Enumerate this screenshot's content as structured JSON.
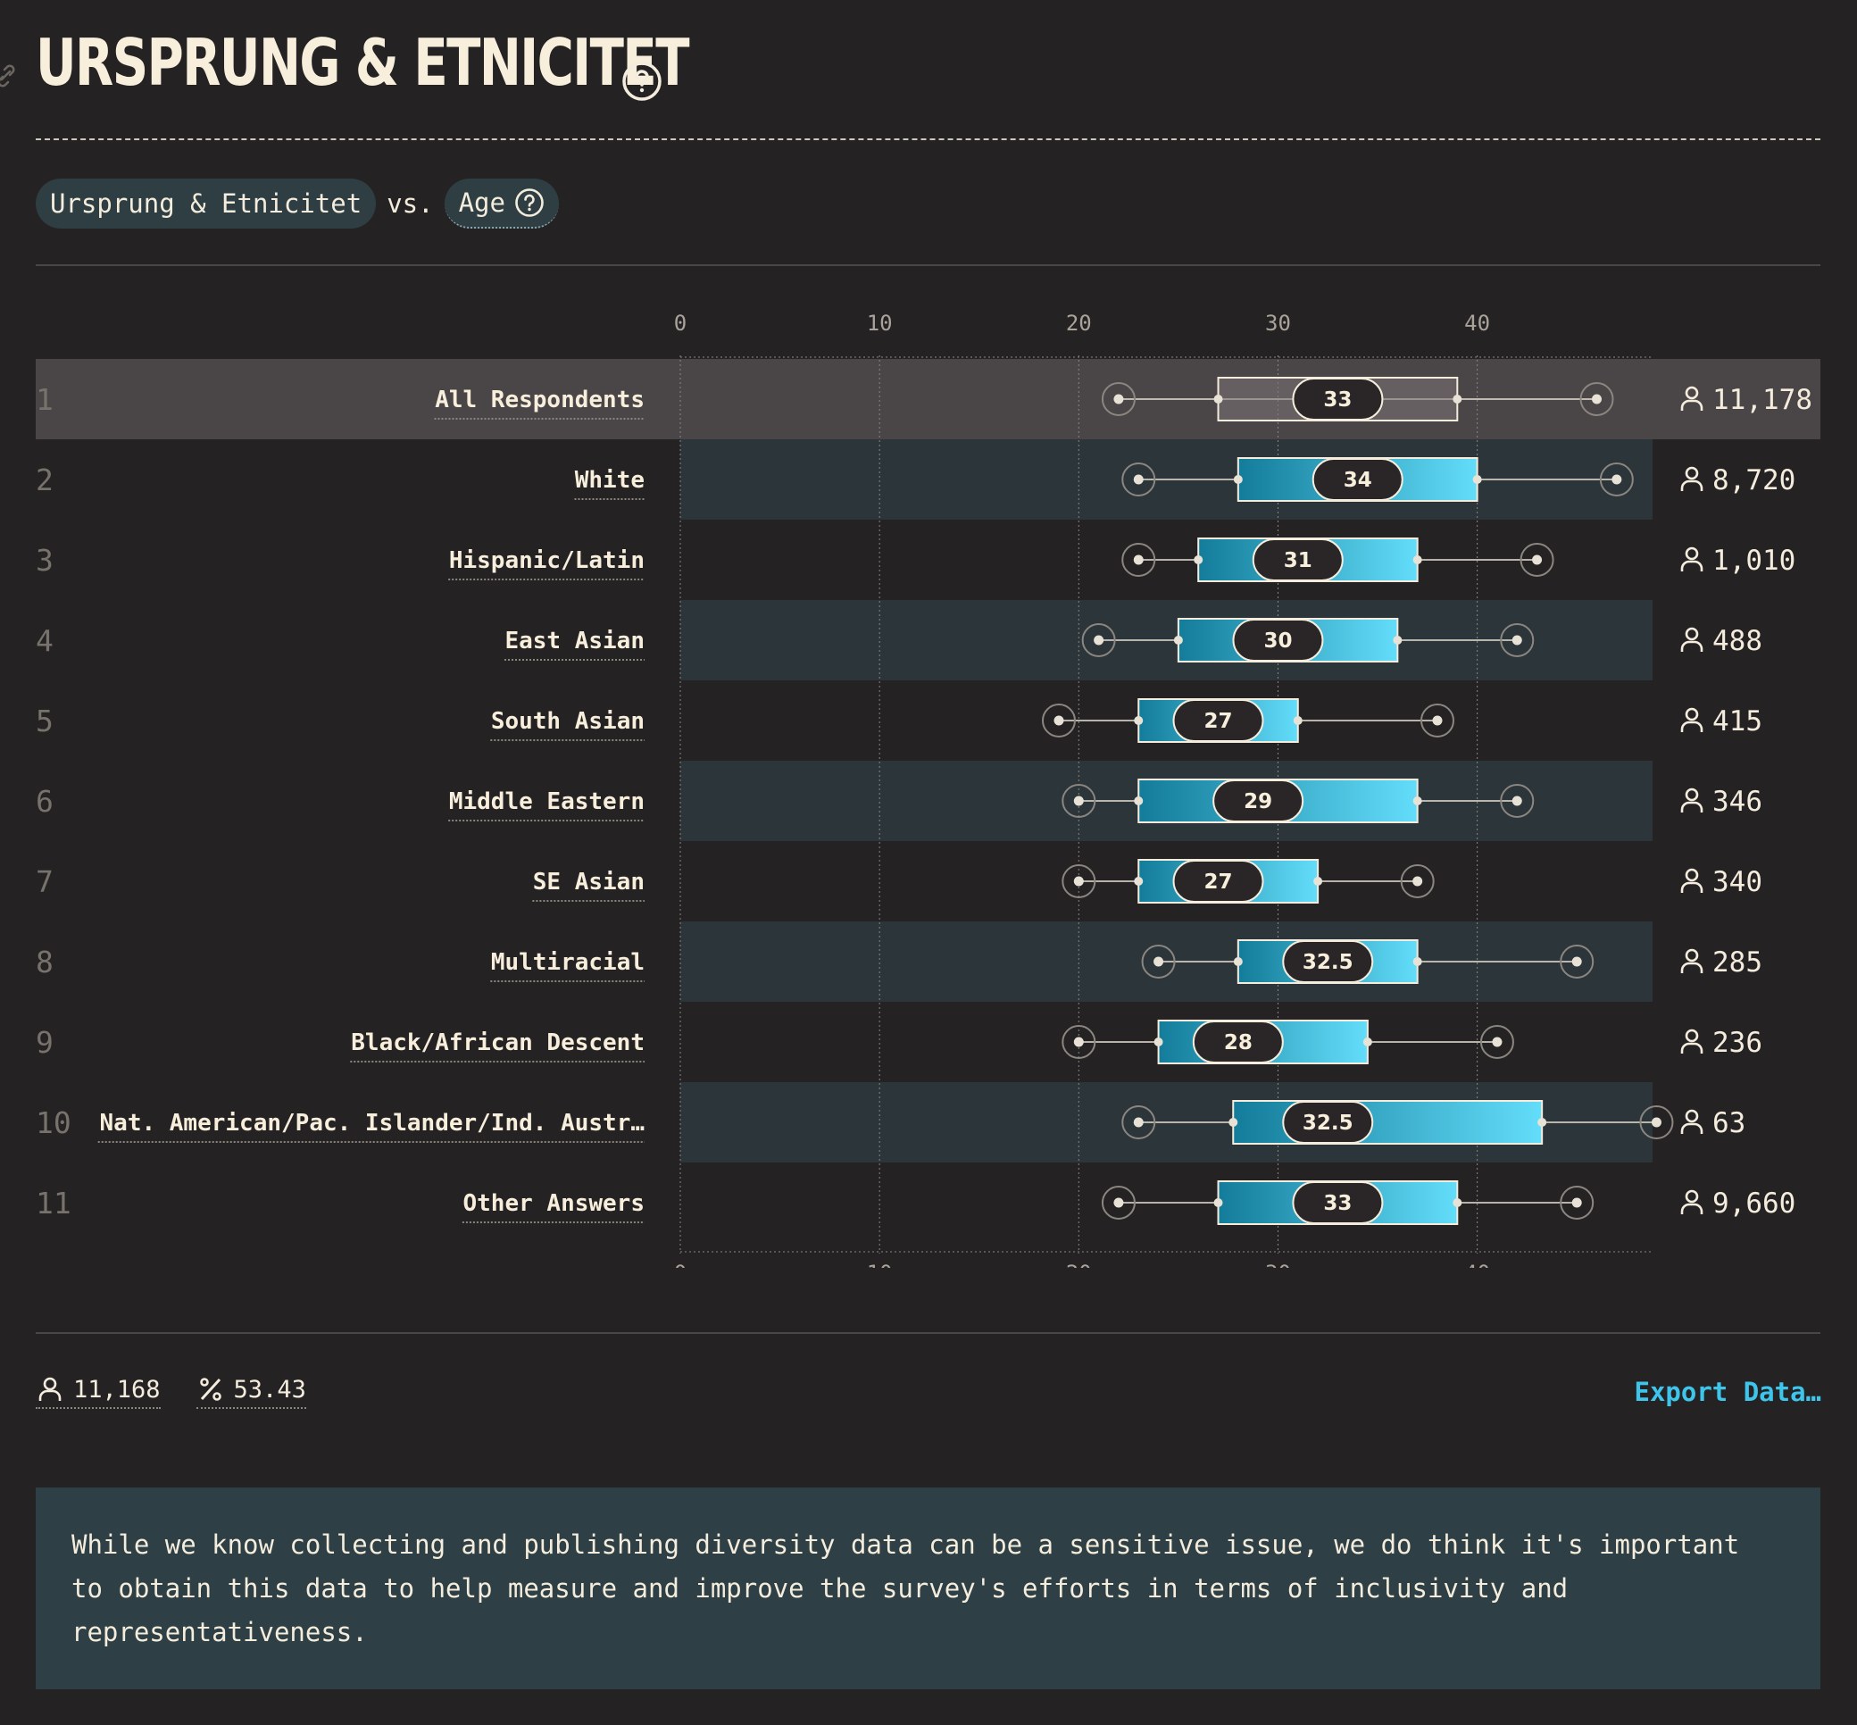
{
  "header": {
    "title": "URSPRUNG & ETNICITET"
  },
  "filters": {
    "primary": "Ursprung & Etnicitet",
    "vs": "vs.",
    "secondary": "Age"
  },
  "footer": {
    "respondents": "11,168",
    "percent": "53.43",
    "export_label": "Export Data…"
  },
  "note": "While we know collecting and publishing diversity data can be a sensitive issue, we do think it's important to obtain this data to help measure and improve the survey's efforts in terms of inclusivity and representativeness.",
  "colors": {
    "background": "#252224",
    "band": "#2c3539",
    "highlight": "#4a4547",
    "box_start": "#137c9a",
    "box_end": "#63ddfa",
    "accent": "#3ec5ec"
  },
  "chart_data": {
    "type": "boxplot",
    "x_ticks": [
      0,
      10,
      20,
      30,
      40
    ],
    "xlim": [
      0,
      48.8
    ],
    "grid": true,
    "rows": [
      {
        "rank": "1",
        "label": "All Respondents",
        "p10": 22,
        "q1": 27,
        "median": 33,
        "q3": 39,
        "p90": 46,
        "count": "11,178",
        "highlight": true
      },
      {
        "rank": "2",
        "label": "White",
        "p10": 23,
        "q1": 28,
        "median": 34,
        "q3": 40,
        "p90": 47,
        "count": "8,720"
      },
      {
        "rank": "3",
        "label": "Hispanic/Latin",
        "p10": 23,
        "q1": 26,
        "median": 31,
        "q3": 37,
        "p90": 43,
        "count": "1,010"
      },
      {
        "rank": "4",
        "label": "East Asian",
        "p10": 21,
        "q1": 25,
        "median": 30,
        "q3": 36,
        "p90": 42,
        "count": "488"
      },
      {
        "rank": "5",
        "label": "South Asian",
        "p10": 19,
        "q1": 23,
        "median": 27,
        "q3": 31,
        "p90": 38,
        "count": "415"
      },
      {
        "rank": "6",
        "label": "Middle Eastern",
        "p10": 20,
        "q1": 23,
        "median": 29,
        "q3": 37,
        "p90": 42,
        "count": "346"
      },
      {
        "rank": "7",
        "label": "SE Asian",
        "p10": 20,
        "q1": 23,
        "median": 27,
        "q3": 32,
        "p90": 37,
        "count": "340"
      },
      {
        "rank": "8",
        "label": "Multiracial",
        "p10": 24,
        "q1": 28,
        "median": 32.5,
        "q3": 37,
        "p90": 45,
        "count": "285"
      },
      {
        "rank": "9",
        "label": "Black/African Descent",
        "p10": 20,
        "q1": 24,
        "median": 28,
        "q3": 34.5,
        "p90": 41,
        "count": "236"
      },
      {
        "rank": "10",
        "label": "Nat. American/Pac. Islander/Ind. Austr…",
        "p10": 23,
        "q1": 27.75,
        "median": 32.5,
        "q3": 43.25,
        "p90": 49,
        "count": "63"
      },
      {
        "rank": "11",
        "label": "Other Answers",
        "p10": 22,
        "q1": 27,
        "median": 33,
        "q3": 39,
        "p90": 45,
        "count": "9,660"
      }
    ]
  }
}
